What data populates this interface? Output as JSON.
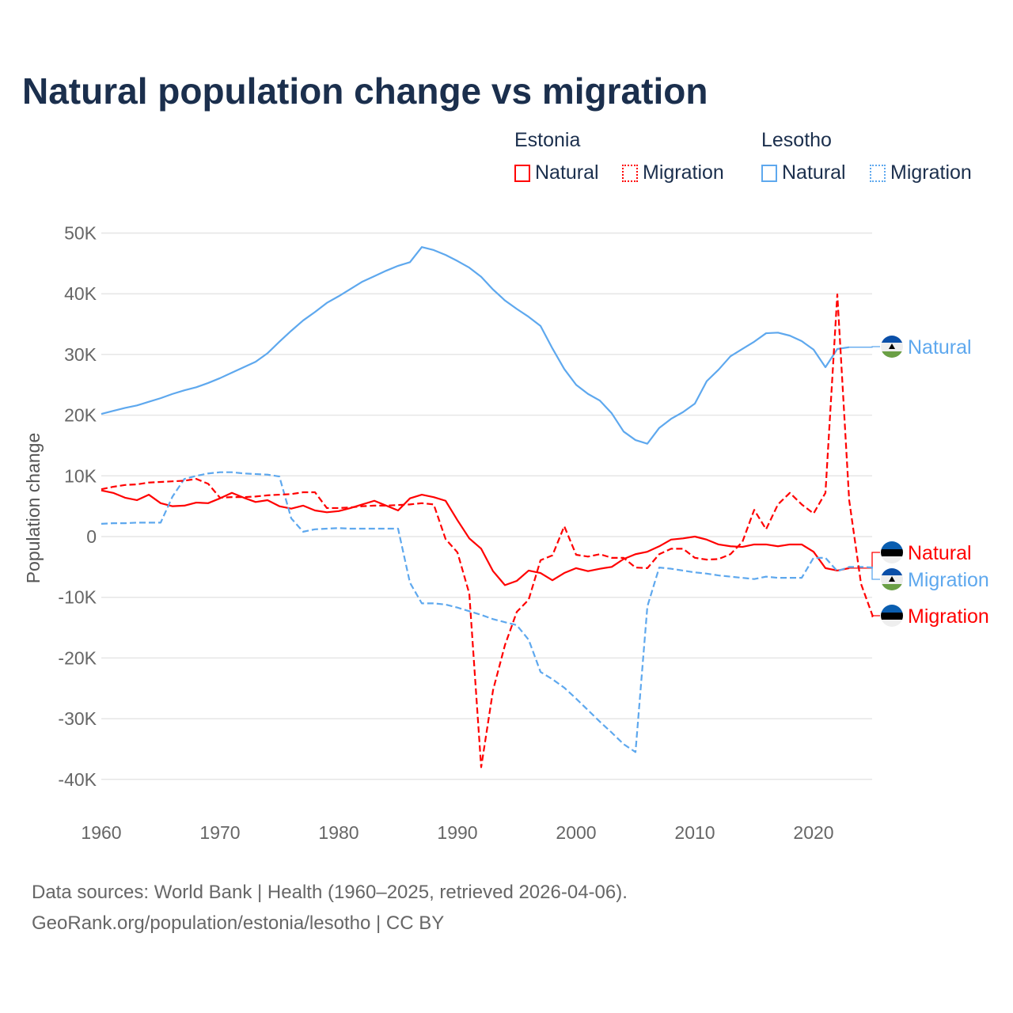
{
  "title": "Natural population change vs migration",
  "legend": {
    "groups": [
      {
        "name": "Estonia",
        "color": "#ff0000",
        "items": [
          "Natural",
          "Migration"
        ]
      },
      {
        "name": "Lesotho",
        "color": "#5ea8ee",
        "items": [
          "Natural",
          "Migration"
        ]
      }
    ]
  },
  "source": [
    "Data sources: World Bank | Health (1960–2025, retrieved 2026-04-06).",
    "GeoRank.org/population/estonia/lesotho | CC BY"
  ],
  "chart_data": {
    "type": "line",
    "title": "Natural population change vs migration",
    "xlabel": "",
    "ylabel": "Population change",
    "xlim": [
      1960,
      2025
    ],
    "ylim": [
      -40000,
      50000
    ],
    "xticks": [
      "1960",
      "1970",
      "1980",
      "1990",
      "2000",
      "2010",
      "2020"
    ],
    "yticks": [
      "50K",
      "40K",
      "30K",
      "20K",
      "10K",
      "0",
      "-10K",
      "-20K",
      "-30K",
      "-40K"
    ],
    "ytick_values": [
      50000,
      40000,
      30000,
      20000,
      10000,
      0,
      -10000,
      -20000,
      -30000,
      -40000
    ],
    "grid": true,
    "start_year": 1960,
    "unit": 1000,
    "series": [
      {
        "name": "Lesotho Natural",
        "label": "Natural",
        "country": "Lesotho",
        "color": "#5ea8ee",
        "dash": false,
        "values": [
          20.2,
          20.7,
          21.2,
          21.6,
          22.2,
          22.8,
          23.5,
          24.1,
          24.6,
          25.3,
          26.1,
          27,
          27.9,
          28.8,
          30.2,
          32.1,
          33.9,
          35.6,
          37,
          38.5,
          39.6,
          40.8,
          42,
          42.9,
          43.8,
          44.6,
          45.2,
          47.7,
          47.2,
          46.4,
          45.4,
          44.3,
          42.8,
          40.7,
          38.9,
          37.5,
          36.2,
          34.7,
          31,
          27.6,
          25,
          23.5,
          22.4,
          20.3,
          17.3,
          15.9,
          15.3,
          17.9,
          19.4,
          20.5,
          21.9,
          25.6,
          27.5,
          29.7,
          30.9,
          32.1,
          33.5,
          33.6,
          33.1,
          32.2,
          30.8,
          27.9,
          30.9,
          31.2
        ]
      },
      {
        "name": "Estonia Natural",
        "label": "Natural",
        "country": "Estonia",
        "color": "#ff0000",
        "dash": false,
        "values": [
          7.6,
          7.2,
          6.4,
          6,
          6.9,
          5.5,
          5,
          5.1,
          5.6,
          5.5,
          6.3,
          7.2,
          6.4,
          5.7,
          6,
          5,
          4.6,
          5.1,
          4.3,
          4,
          4.2,
          4.7,
          5.3,
          5.9,
          5.1,
          4.3,
          6.3,
          6.9,
          6.5,
          5.9,
          2.7,
          -0.3,
          -2,
          -5.7,
          -8,
          -7.3,
          -5.6,
          -6,
          -7.2,
          -6,
          -5.2,
          -5.7,
          -5.3,
          -5,
          -3.7,
          -2.9,
          -2.5,
          -1.6,
          -0.5,
          -0.3,
          0,
          -0.5,
          -1.3,
          -1.6,
          -1.7,
          -1.3,
          -1.3,
          -1.6,
          -1.3,
          -1.3,
          -2.5,
          -5.2,
          -5.6,
          -5.2
        ]
      },
      {
        "name": "Lesotho Migration",
        "label": "Migration",
        "country": "Lesotho",
        "color": "#5ea8ee",
        "dash": true,
        "values": [
          2.1,
          2.2,
          2.2,
          2.3,
          2.3,
          2.3,
          6.6,
          9.5,
          10,
          10.4,
          10.6,
          10.6,
          10.4,
          10.3,
          10.2,
          9.9,
          3,
          0.8,
          1.2,
          1.3,
          1.4,
          1.3,
          1.3,
          1.3,
          1.3,
          1.3,
          -7.6,
          -11,
          -11,
          -11.2,
          -11.7,
          -12.3,
          -12.9,
          -13.6,
          -14.1,
          -14.6,
          -17,
          -22.3,
          -23.5,
          -24.9,
          -26.7,
          -28.6,
          -30.5,
          -32.3,
          -34.2,
          -35.5,
          -11.5,
          -5.1,
          -5.3,
          -5.6,
          -5.9,
          -6.1,
          -6.4,
          -6.6,
          -6.8,
          -7,
          -6.6,
          -6.8,
          -6.8,
          -6.8,
          -3.5,
          -3.5,
          -5.7,
          -5,
          -5,
          -5.1
        ]
      },
      {
        "name": "Estonia Migration",
        "label": "Migration",
        "country": "Estonia",
        "color": "#ff0000",
        "dash": true,
        "values": [
          7.8,
          8.2,
          8.5,
          8.6,
          8.9,
          9,
          9.1,
          9.2,
          9.5,
          8.7,
          6.4,
          6.5,
          6.5,
          6.6,
          6.8,
          6.9,
          7,
          7.3,
          7.3,
          4.7,
          4.7,
          4.8,
          5,
          5.1,
          5.1,
          5.2,
          5.3,
          5.5,
          5.3,
          -0.4,
          -2.6,
          -9.4,
          -38,
          -25.3,
          -17.9,
          -12.4,
          -10.4,
          -3.9,
          -3.1,
          1.7,
          -3,
          -3.3,
          -2.9,
          -3.5,
          -3.5,
          -5.1,
          -5.2,
          -2.9,
          -2,
          -2,
          -3.5,
          -3.8,
          -3.7,
          -2.9,
          -0.9,
          4.4,
          1.2,
          5.3,
          7.2,
          5.3,
          3.8,
          7.2,
          39.9,
          6,
          -7.8,
          -13.2
        ]
      }
    ]
  }
}
